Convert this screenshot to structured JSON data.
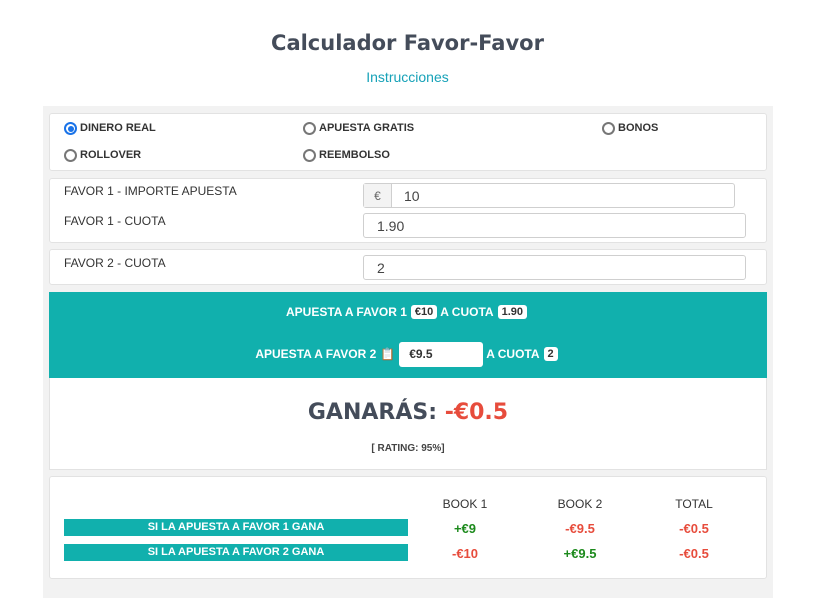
{
  "page": {
    "title": "Calculador Favor-Favor",
    "instructions_link": "Instrucciones"
  },
  "modes": [
    {
      "label": "DINERO REAL",
      "selected": true
    },
    {
      "label": "APUESTA GRATIS",
      "selected": false
    },
    {
      "label": "BONOS",
      "selected": false
    },
    {
      "label": "ROLLOVER",
      "selected": false
    },
    {
      "label": "REEMBOLSO",
      "selected": false
    }
  ],
  "form": {
    "favor1_stake_label": "FAVOR 1 - IMPORTE APUESTA",
    "currency_symbol": "€",
    "favor1_stake_value": "10",
    "favor1_odds_label": "FAVOR 1 - CUOTA",
    "favor1_odds_value": "1.90",
    "favor2_odds_label": "FAVOR 2 - CUOTA",
    "favor2_odds_value": "2"
  },
  "summary": {
    "bet1_label": "APUESTA A FAVOR 1",
    "bet1_amount": "€10",
    "bet1_odds_label": "A CUOTA",
    "bet1_odds": "1.90",
    "bet2_label": "APUESTA A FAVOR 2",
    "bet2_amount": "€9.5",
    "bet2_odds_label": "A CUOTA",
    "bet2_odds": "2",
    "copy_icon": "clipboard-icon"
  },
  "result": {
    "label": "GANARÁS:",
    "value": "-€0.5",
    "rating": "[ RATING: 95%]"
  },
  "table": {
    "headers": [
      "BOOK 1",
      "BOOK 2",
      "TOTAL"
    ],
    "rows": [
      {
        "label": "SI LA APUESTA A FAVOR 1 GANA",
        "values": [
          "+€9",
          "-€9.5",
          "-€0.5"
        ]
      },
      {
        "label": "SI LA APUESTA A FAVOR 2 GANA",
        "values": [
          "-€10",
          "+€9.5",
          "-€0.5"
        ]
      }
    ]
  },
  "colors": {
    "accent": "#11b0ad",
    "link": "#17a2b8",
    "positive": "#1c8a1c",
    "negative": "#e74c3c",
    "title": "#444c5a"
  }
}
